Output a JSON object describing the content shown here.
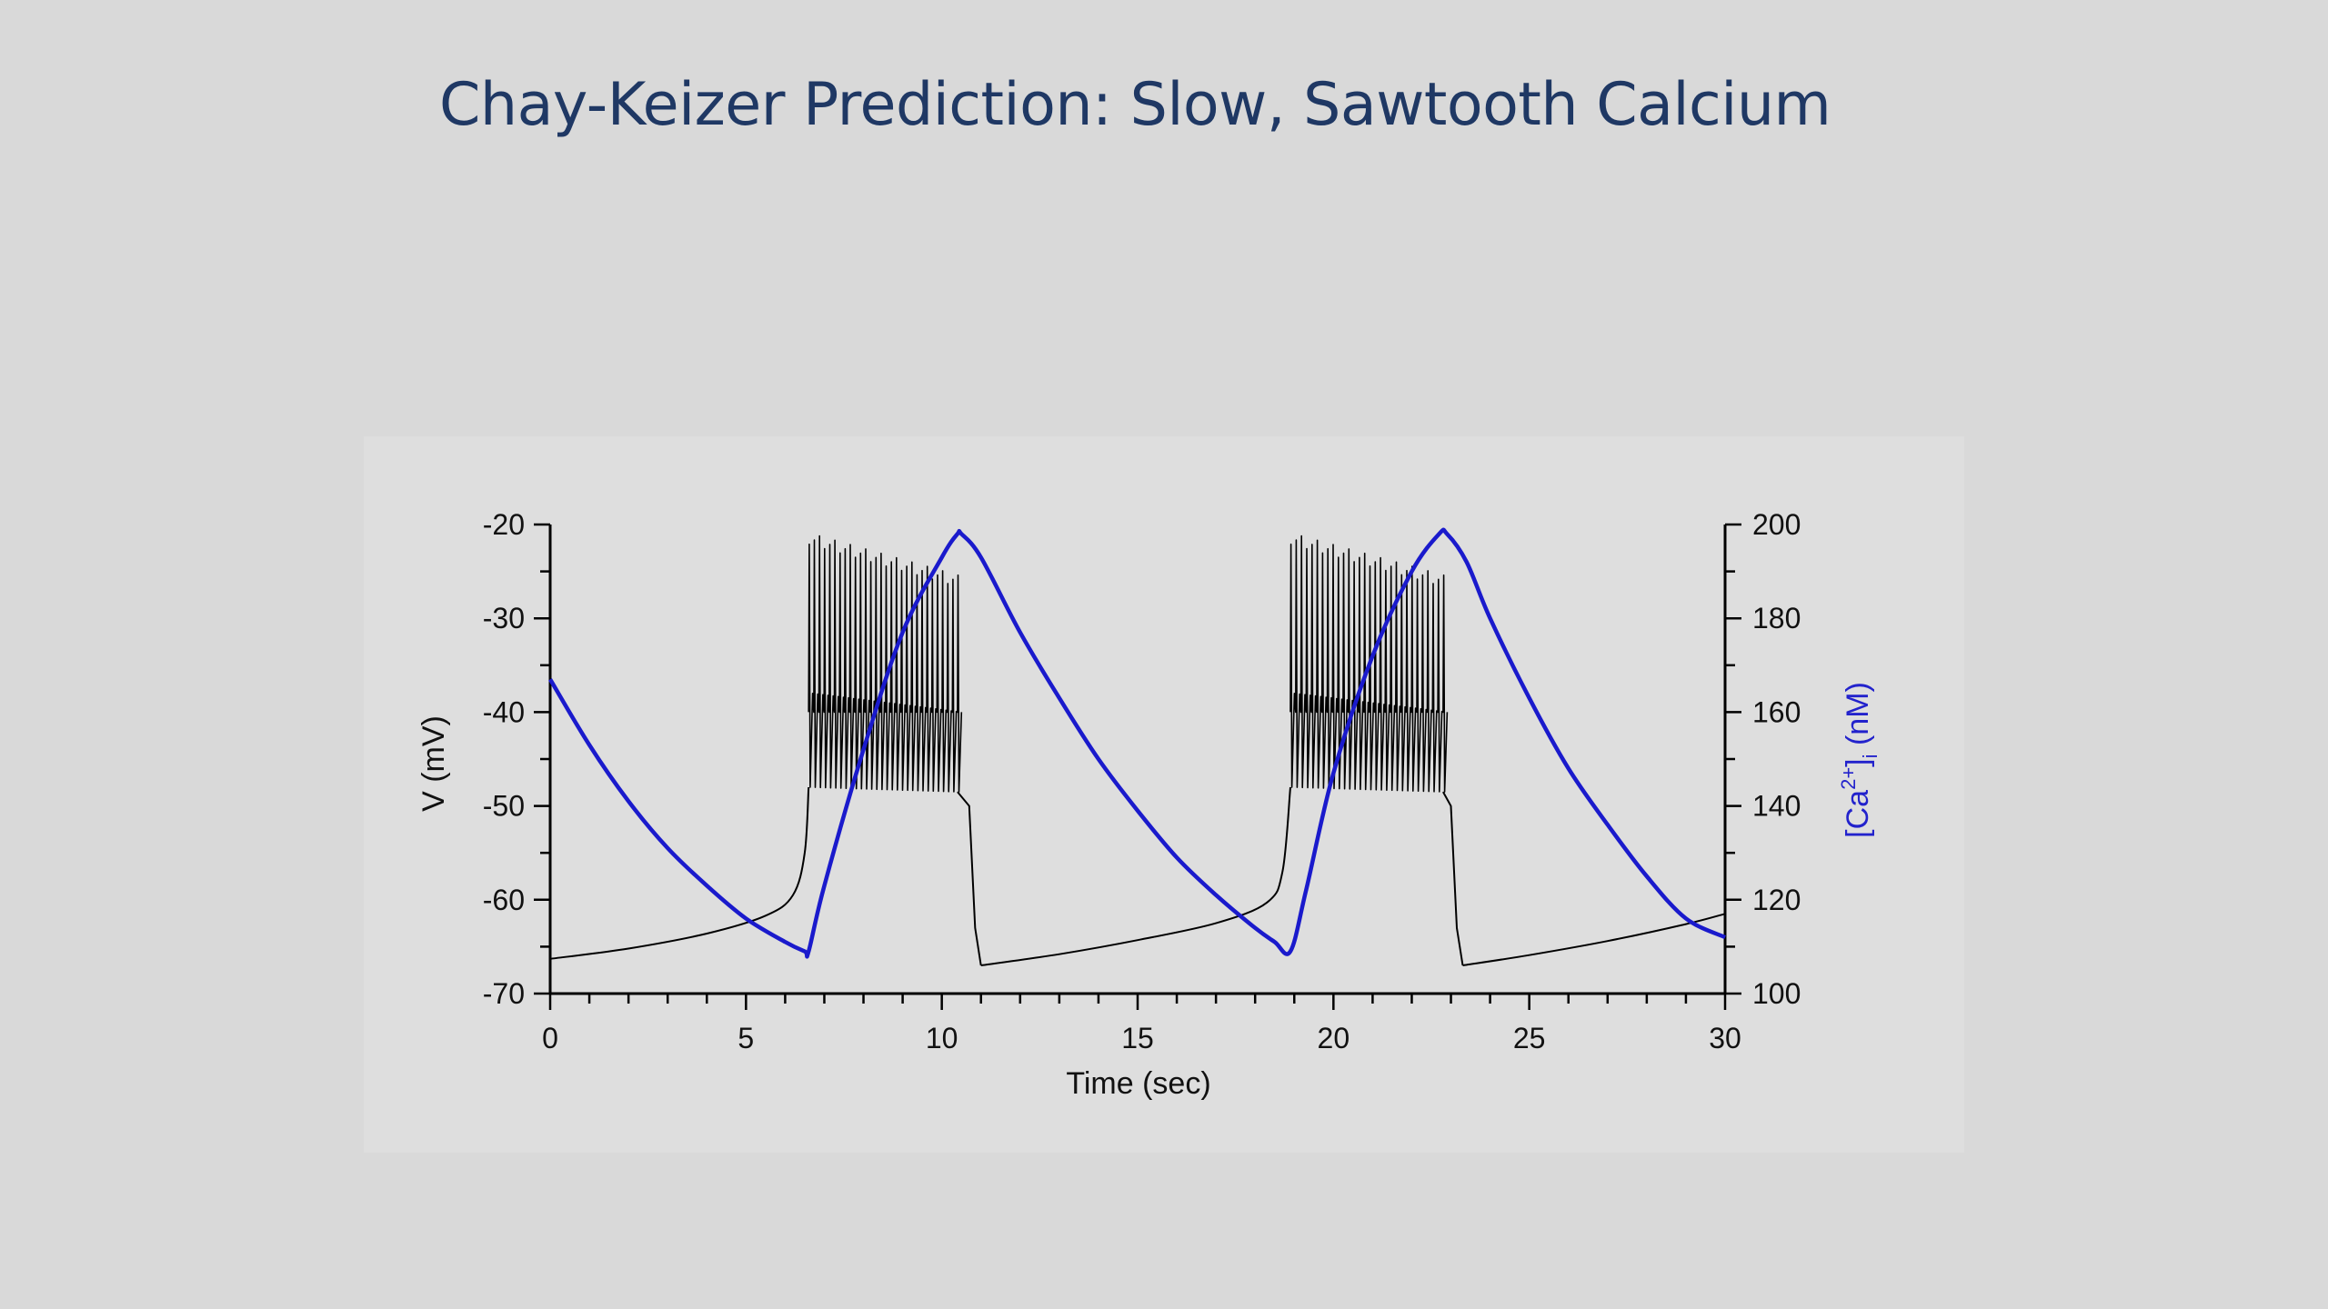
{
  "slide": {
    "title": "Chay-Keizer Prediction: Slow, Sawtooth Calcium"
  },
  "chart_data": {
    "type": "line",
    "title": "",
    "xlabel": "Time (sec)",
    "ylabel_left": "V (mV)",
    "ylabel_right_main": "[Ca",
    "ylabel_right_sup": "2+",
    "ylabel_right_mid": "]",
    "ylabel_right_sub": "i",
    "ylabel_right_end": " (nM)",
    "xlim": [
      0,
      30
    ],
    "ylim_left": [
      -70,
      -20
    ],
    "ylim_right": [
      100,
      200
    ],
    "x_ticks": [
      "0",
      "5",
      "10",
      "15",
      "20",
      "25",
      "30"
    ],
    "y_left_ticks": [
      "-20",
      "-30",
      "-40",
      "-50",
      "-60",
      "-70"
    ],
    "y_right_ticks": [
      "200",
      "180",
      "160",
      "140",
      "120",
      "100"
    ],
    "colors": {
      "voltage": "#000000",
      "calcium": "#1a1acc"
    },
    "series": [
      {
        "axis": "left",
        "kind": "bursting",
        "silent_phases": [
          {
            "x": [
              0,
              2,
              4,
              5.5,
              6.2,
              6.5,
              6.6
            ],
            "y": [
              -66.3,
              -65.2,
              -63.6,
              -61.7,
              -59.5,
              -55,
              -48
            ]
          },
          {
            "x": [
              11.0,
              13,
              15,
              17,
              18.3,
              18.7,
              18.9
            ],
            "y": [
              -67.0,
              -65.8,
              -64.3,
              -62.5,
              -60.3,
              -57,
              -48
            ]
          },
          {
            "x": [
              23.3,
              25,
              27,
              29,
              30
            ],
            "y": [
              -67.0,
              -65.9,
              -64.4,
              -62.6,
              -61.5
            ]
          }
        ],
        "active_phases": [
          {
            "start": 6.6,
            "end": 10.4,
            "spikes": 30,
            "peak_start": -21.5,
            "peak_end": -26,
            "trough_start": -48,
            "trough_end": -48.5
          },
          {
            "start": 18.9,
            "end": 22.8,
            "spikes": 30,
            "peak_start": -21.5,
            "peak_end": -26,
            "trough_start": -48,
            "trough_end": -48.5
          }
        ],
        "repolarization": [
          {
            "x": [
              10.4,
              10.7,
              10.85,
              11.0
            ],
            "y": [
              -48.5,
              -50,
              -63,
              -67
            ]
          },
          {
            "x": [
              22.8,
              23.0,
              23.15,
              23.3
            ],
            "y": [
              -48.5,
              -50,
              -63,
              -67
            ]
          }
        ]
      },
      {
        "axis": "right",
        "x": [
          0,
          1,
          2,
          3,
          4,
          5,
          6,
          6.5,
          6.6,
          7,
          8,
          9,
          10,
          10.4,
          10.5,
          11,
          12,
          13,
          14,
          15,
          16,
          17,
          18,
          18.5,
          18.9,
          19.3,
          20,
          21,
          22,
          22.7,
          22.9,
          23.4,
          24,
          25,
          26,
          27,
          28,
          29,
          30
        ],
        "y": [
          167,
          153,
          141,
          131,
          123,
          116,
          111,
          109,
          109,
          123,
          152,
          177,
          193,
          198,
          198,
          193,
          177,
          163,
          150,
          139,
          129,
          121,
          114,
          111,
          109,
          122,
          147,
          172,
          190,
          198,
          198,
          192,
          180,
          163,
          148,
          136,
          125,
          116,
          112
        ]
      }
    ]
  }
}
